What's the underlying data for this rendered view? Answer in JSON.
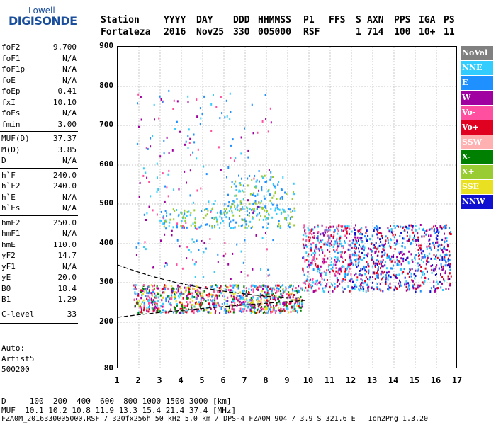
{
  "logo": {
    "line1": "Lowell",
    "line2": "DIGISONDE"
  },
  "header": {
    "cols": [
      {
        "h": "Station",
        "v": "Fortaleza",
        "x": 142
      },
      {
        "h": "YYYY",
        "v": "2016",
        "x": 231
      },
      {
        "h": "DAY",
        "v": "Nov25",
        "x": 277
      },
      {
        "h": "DDD",
        "v": "330",
        "x": 329
      },
      {
        "h": "HHMMSS",
        "v": "005000",
        "x": 364
      },
      {
        "h": "P1",
        "v": "RSF",
        "x": 428
      },
      {
        "h": "FFS",
        "v": "",
        "x": 464
      },
      {
        "h": "S",
        "v": "1",
        "x": 502
      },
      {
        "h": "AXN",
        "v": "714",
        "x": 518
      },
      {
        "h": "PPS",
        "v": "100",
        "x": 556
      },
      {
        "h": "IGA",
        "v": "10+",
        "x": 591
      },
      {
        "h": "PS",
        "v": "11",
        "x": 626
      }
    ]
  },
  "params": [
    {
      "name": "foF2",
      "value": "9.700"
    },
    {
      "name": "foF1",
      "value": "N/A"
    },
    {
      "name": "foF1p",
      "value": "N/A"
    },
    {
      "name": "foE",
      "value": "N/A"
    },
    {
      "name": "foEp",
      "value": "0.41"
    },
    {
      "name": "fxI",
      "value": "10.10"
    },
    {
      "name": "foEs",
      "value": "N/A"
    },
    {
      "name": "fmin",
      "value": "3.00"
    },
    {
      "name": "MUF(D)",
      "value": "37.37"
    },
    {
      "name": "M(D)",
      "value": "3.85"
    },
    {
      "name": "D",
      "value": "N/A"
    },
    {
      "name": "h`F",
      "value": "240.0"
    },
    {
      "name": "h`F2",
      "value": "240.0"
    },
    {
      "name": "h`E",
      "value": "N/A"
    },
    {
      "name": "h`Es",
      "value": "N/A"
    },
    {
      "name": "hmF2",
      "value": "250.0"
    },
    {
      "name": "hmF1",
      "value": "N/A"
    },
    {
      "name": "hmE",
      "value": "110.0"
    },
    {
      "name": "yF2",
      "value": "14.7"
    },
    {
      "name": "yF1",
      "value": "N/A"
    },
    {
      "name": "yE",
      "value": "20.0"
    },
    {
      "name": "B0",
      "value": "18.4"
    },
    {
      "name": "B1",
      "value": "1.29"
    },
    {
      "name": "C-level",
      "value": "33"
    }
  ],
  "auto": {
    "line1": "Auto:",
    "line2": "Artist5",
    "line3": "500200"
  },
  "legend": [
    {
      "label": "NoVal",
      "color": "#808080"
    },
    {
      "label": "NNE",
      "color": "#33ccff"
    },
    {
      "label": "E",
      "color": "#1e90ff"
    },
    {
      "label": "W",
      "color": "#a000a0"
    },
    {
      "label": "Vo-",
      "color": "#ff4fa0"
    },
    {
      "label": "Vo+",
      "color": "#e00020"
    },
    {
      "label": "SSW",
      "color": "#ffb0b0"
    },
    {
      "label": "X-",
      "color": "#008000"
    },
    {
      "label": "X+",
      "color": "#99cc33"
    },
    {
      "label": "SSE",
      "color": "#e8e020"
    },
    {
      "label": "NNW",
      "color": "#1010d0"
    }
  ],
  "axes": {
    "y_ticks": [
      "900",
      "800",
      "700",
      "600",
      "500",
      "400",
      "300",
      "200",
      "80"
    ],
    "x_ticks": [
      "1",
      "2",
      "3",
      "4",
      "5",
      "6",
      "7",
      "8",
      "9",
      "10",
      "11",
      "12",
      "13",
      "14",
      "15",
      "16",
      "17"
    ]
  },
  "footer": {
    "d_line": "D     100  200  400  600  800 1000 1500 3000 [km]",
    "muf_line": "MUF  10.1 10.2 10.8 11.9 13.3 15.4 21.4 37.4 [MHz]",
    "info_line": "FZA0M_2016330005000.RSF / 320fx256h 50 kHz 5.0 km / DPS-4 FZA0M 904 / 3.9 S 321.6 E   Ion2Png 1.3.20"
  }
}
